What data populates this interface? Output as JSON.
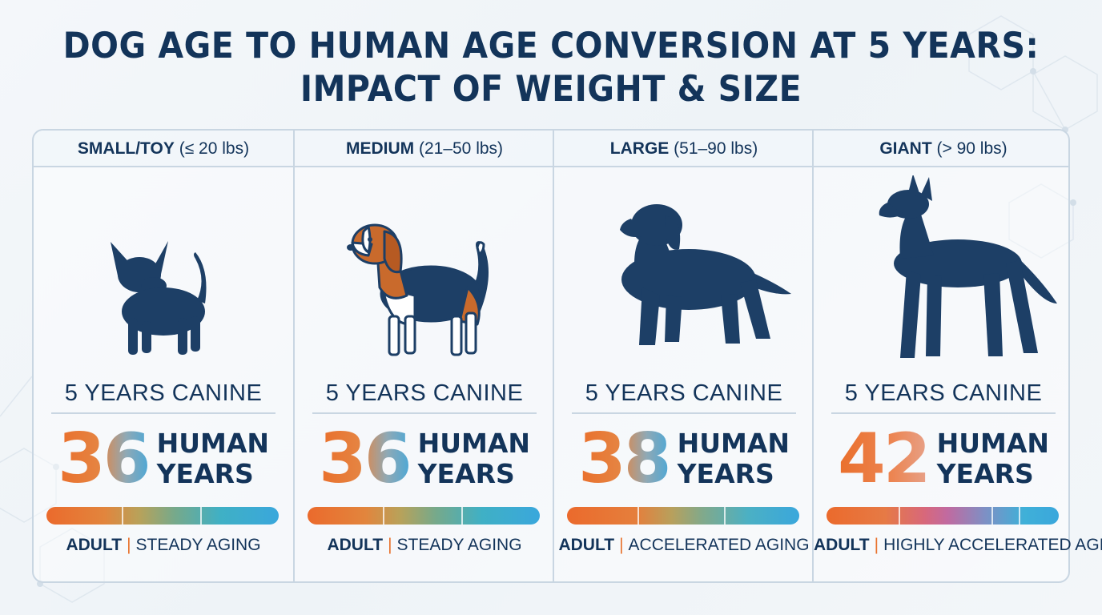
{
  "title": {
    "line1": "DOG AGE TO HUMAN AGE CONVERSION AT 5 YEARS:",
    "line2": "IMPACT OF WEIGHT & SIZE"
  },
  "columns": [
    {
      "category": "SMALL/TOY",
      "weight": "(≤ 20 lbs)",
      "dog_icon": "chihuahua-silhouette",
      "canine": "5 YEARS CANINE",
      "human_age": "36",
      "human_label_1": "HUMAN",
      "human_label_2": "YEARS",
      "stage": "ADULT",
      "aging": "STEADY AGING"
    },
    {
      "category": "MEDIUM",
      "weight": "(21–50 lbs)",
      "dog_icon": "beagle-illustration",
      "canine": "5 YEARS CANINE",
      "human_age": "36",
      "human_label_1": "HUMAN",
      "human_label_2": "YEARS",
      "stage": "ADULT",
      "aging": "STEADY AGING"
    },
    {
      "category": "LARGE",
      "weight": "(51–90 lbs)",
      "dog_icon": "labrador-silhouette",
      "canine": "5 YEARS CANINE",
      "human_age": "38",
      "human_label_1": "HUMAN",
      "human_label_2": "YEARS",
      "stage": "ADULT",
      "aging": "ACCELERATED AGING"
    },
    {
      "category": "GIANT",
      "weight": "(> 90 lbs)",
      "dog_icon": "great-dane-silhouette",
      "canine": "5 YEARS CANINE",
      "human_age": "42",
      "human_label_1": "HUMAN",
      "human_label_2": "YEARS",
      "stage": "ADULT",
      "aging": "HIGHLY ACCELERATED AGING"
    }
  ],
  "colors": {
    "navy": "#13345a",
    "orange": "#ea6f2b",
    "blue": "#3aa7dc",
    "border": "#c9d6e2"
  }
}
